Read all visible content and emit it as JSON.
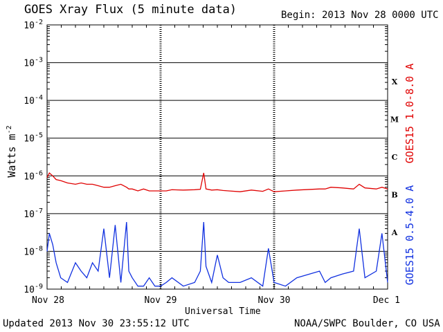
{
  "chart_data": {
    "type": "line",
    "title": "GOES Xray Flux (5 minute data)",
    "begin": "Begin:  2013 Nov 28 0000 UTC",
    "ylabel": "Watts m",
    "ylabel_sup": "-2",
    "xlabel": "Universal Time",
    "y_scale": "log",
    "ylim": [
      1e-09,
      0.01
    ],
    "y_ticks": [
      {
        "base": "10",
        "exp": "-2"
      },
      {
        "base": "10",
        "exp": "-3"
      },
      {
        "base": "10",
        "exp": "-4"
      },
      {
        "base": "10",
        "exp": "-5"
      },
      {
        "base": "10",
        "exp": "-6"
      },
      {
        "base": "10",
        "exp": "-7"
      },
      {
        "base": "10",
        "exp": "-8"
      },
      {
        "base": "10",
        "exp": "-9"
      }
    ],
    "x_ticks": [
      "Nov 28",
      "Nov 29",
      "Nov 30",
      "Dec 1"
    ],
    "xlim": [
      0,
      3
    ],
    "flare_classes": [
      "X",
      "M",
      "C",
      "B",
      "A"
    ],
    "series": [
      {
        "name": "GOES15 1.0-8.0 A",
        "color": "#e00000",
        "x": [
          0.0,
          0.02,
          0.05,
          0.08,
          0.12,
          0.18,
          0.25,
          0.3,
          0.35,
          0.4,
          0.45,
          0.5,
          0.55,
          0.6,
          0.65,
          0.7,
          0.72,
          0.75,
          0.8,
          0.85,
          0.9,
          0.95,
          1.0,
          1.05,
          1.1,
          1.2,
          1.3,
          1.35,
          1.38,
          1.4,
          1.45,
          1.5,
          1.55,
          1.6,
          1.7,
          1.8,
          1.9,
          1.95,
          2.0,
          2.1,
          2.2,
          2.4,
          2.45,
          2.5,
          2.6,
          2.7,
          2.75,
          2.8,
          2.9,
          2.95,
          3.0
        ],
        "values": [
          9e-07,
          1.2e-06,
          1e-06,
          8e-07,
          7.5e-07,
          6.5e-07,
          6e-07,
          6.5e-07,
          6e-07,
          6e-07,
          5.5e-07,
          5e-07,
          5e-07,
          5.5e-07,
          6e-07,
          5e-07,
          4.5e-07,
          4.5e-07,
          4e-07,
          4.5e-07,
          4e-07,
          4e-07,
          4e-07,
          4e-07,
          4.3e-07,
          4.2e-07,
          4.3e-07,
          4.4e-07,
          1.2e-06,
          4.5e-07,
          4.2e-07,
          4.3e-07,
          4.1e-07,
          4e-07,
          3.8e-07,
          4.2e-07,
          3.9e-07,
          4.5e-07,
          3.8e-07,
          4e-07,
          4.2e-07,
          4.5e-07,
          4.5e-07,
          5e-07,
          4.8e-07,
          4.5e-07,
          6e-07,
          4.8e-07,
          4.5e-07,
          5e-07,
          4.5e-07
        ]
      },
      {
        "name": "GOES15 0.5-4.0 A",
        "color": "#1030e0",
        "x": [
          0.0,
          0.02,
          0.05,
          0.08,
          0.12,
          0.18,
          0.25,
          0.3,
          0.35,
          0.4,
          0.45,
          0.5,
          0.55,
          0.6,
          0.65,
          0.7,
          0.72,
          0.75,
          0.8,
          0.85,
          0.9,
          0.95,
          1.0,
          1.05,
          1.1,
          1.2,
          1.3,
          1.35,
          1.38,
          1.4,
          1.45,
          1.5,
          1.55,
          1.6,
          1.7,
          1.8,
          1.9,
          1.95,
          2.0,
          2.1,
          2.2,
          2.4,
          2.45,
          2.5,
          2.6,
          2.7,
          2.75,
          2.8,
          2.9,
          2.95,
          3.0
        ],
        "values": [
          1e-08,
          3e-08,
          1.5e-08,
          5e-09,
          2e-09,
          1.5e-09,
          5e-09,
          3e-09,
          2e-09,
          5e-09,
          3e-09,
          4e-08,
          2e-09,
          5e-08,
          1.5e-09,
          6e-08,
          3e-09,
          2e-09,
          1.2e-09,
          1.2e-09,
          2e-09,
          1.2e-09,
          1.2e-09,
          1.5e-09,
          2e-09,
          1.2e-09,
          1.5e-09,
          3e-09,
          6e-08,
          4e-09,
          1.5e-09,
          8e-09,
          2e-09,
          1.5e-09,
          1.5e-09,
          2e-09,
          1.2e-09,
          1.2e-08,
          1.5e-09,
          1.2e-09,
          2e-09,
          3e-09,
          1.5e-09,
          2e-09,
          2.5e-09,
          3e-09,
          4e-08,
          2e-09,
          3e-09,
          3e-08,
          1.5e-09
        ]
      }
    ]
  },
  "footer": {
    "updated": "Updated 2013 Nov 30 23:55:12 UTC",
    "credit": "NOAA/SWPC Boulder, CO USA"
  }
}
